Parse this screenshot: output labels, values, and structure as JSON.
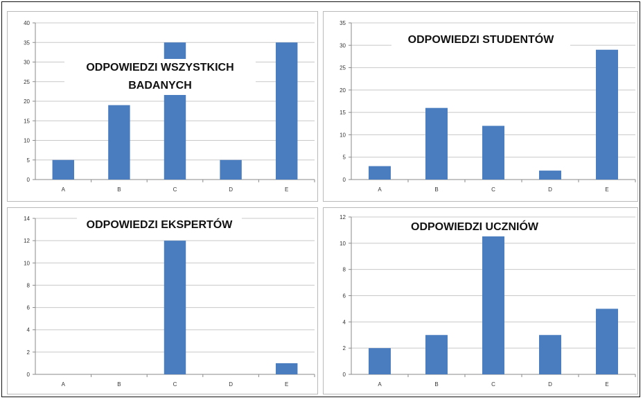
{
  "chart_data": [
    {
      "type": "bar",
      "title": "ODPOWIEDZI WSZYSTKICH BADANYCH",
      "title_lines": [
        "ODPOWIEDZI WSZYSTKICH",
        "BADANYCH"
      ],
      "categories": [
        "A",
        "B",
        "C",
        "D",
        "E"
      ],
      "values": [
        5,
        19,
        35,
        5,
        35
      ],
      "ylim": [
        0,
        40
      ],
      "yticks": [
        0,
        5,
        10,
        15,
        20,
        25,
        30,
        35,
        40
      ],
      "grid": true,
      "color": "#4a7dbf"
    },
    {
      "type": "bar",
      "title": "ODPOWIEDZI STUDENTÓW",
      "title_lines": [
        "ODPOWIEDZI STUDENTÓW"
      ],
      "categories": [
        "A",
        "B",
        "C",
        "D",
        "E"
      ],
      "values": [
        3,
        16,
        12,
        2,
        29
      ],
      "ylim": [
        0,
        35
      ],
      "yticks": [
        0,
        5,
        10,
        15,
        20,
        25,
        30,
        35
      ],
      "grid": true,
      "color": "#4a7dbf"
    },
    {
      "type": "bar",
      "title": "ODPOWIEDZI EKSPERTÓW",
      "title_lines": [
        "ODPOWIEDZI EKSPERTÓW"
      ],
      "categories": [
        "A",
        "B",
        "C",
        "D",
        "E"
      ],
      "values": [
        0,
        0,
        12,
        0,
        1
      ],
      "ylim": [
        0,
        14
      ],
      "yticks": [
        0,
        2,
        4,
        6,
        8,
        10,
        12,
        14
      ],
      "grid": true,
      "color": "#4a7dbf"
    },
    {
      "type": "bar",
      "title": "ODPOWIEDZI UCZNIÓW",
      "title_lines": [
        "ODPOWIEDZI UCZNIÓW"
      ],
      "categories": [
        "A",
        "B",
        "C",
        "D",
        "E"
      ],
      "values": [
        2,
        3,
        11,
        3,
        5
      ],
      "ylim": [
        0,
        12
      ],
      "yticks": [
        0,
        2,
        4,
        6,
        8,
        10,
        12
      ],
      "grid": true,
      "color": "#4a7dbf"
    }
  ]
}
